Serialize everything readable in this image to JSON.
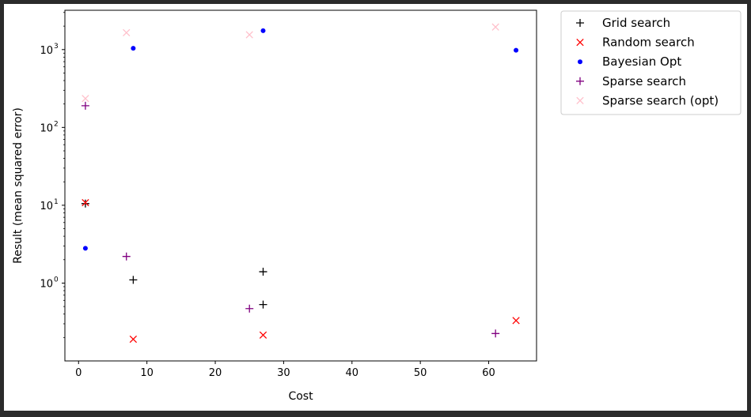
{
  "chart_data": {
    "type": "scatter",
    "xlabel": "Cost",
    "ylabel": "Result (mean squared error)",
    "xlim": [
      -2,
      67
    ],
    "ylim": [
      0.1,
      3200
    ],
    "yscale": "log",
    "x_ticks": [
      {
        "value": 0,
        "label": "0"
      },
      {
        "value": 10,
        "label": "10"
      },
      {
        "value": 20,
        "label": "20"
      },
      {
        "value": 30,
        "label": "30"
      },
      {
        "value": 40,
        "label": "40"
      },
      {
        "value": 50,
        "label": "50"
      },
      {
        "value": 60,
        "label": "60"
      }
    ],
    "y_ticks": [
      {
        "value": 1,
        "base": "10",
        "exp": "0"
      },
      {
        "value": 10,
        "base": "10",
        "exp": "1"
      },
      {
        "value": 100,
        "base": "10",
        "exp": "2"
      },
      {
        "value": 1000,
        "base": "10",
        "exp": "3"
      }
    ],
    "grid": false,
    "legend_position": "outside-upper-right",
    "series": [
      {
        "name": "Grid search",
        "marker": "plus",
        "color": "#000000",
        "points": [
          {
            "x": 1,
            "y": 10.5
          },
          {
            "x": 8,
            "y": 1.1
          },
          {
            "x": 27,
            "y": 1.4
          },
          {
            "x": 27,
            "y": 0.53
          }
        ]
      },
      {
        "name": "Random search",
        "marker": "x",
        "color": "#ff0000",
        "points": [
          {
            "x": 1,
            "y": 10.8
          },
          {
            "x": 8,
            "y": 0.19
          },
          {
            "x": 27,
            "y": 0.215
          },
          {
            "x": 64,
            "y": 0.33
          }
        ]
      },
      {
        "name": "Bayesian Opt",
        "marker": "dot",
        "color": "#0000ff",
        "points": [
          {
            "x": 1,
            "y": 2.8
          },
          {
            "x": 8,
            "y": 1040
          },
          {
            "x": 27,
            "y": 1750
          },
          {
            "x": 64,
            "y": 980
          }
        ]
      },
      {
        "name": "Sparse search",
        "marker": "plus",
        "color": "#800080",
        "points": [
          {
            "x": 1,
            "y": 190
          },
          {
            "x": 7,
            "y": 2.2
          },
          {
            "x": 25,
            "y": 0.47
          },
          {
            "x": 61,
            "y": 0.225
          }
        ]
      },
      {
        "name": "Sparse search (opt)",
        "marker": "x",
        "color": "#ffc0cb",
        "points": [
          {
            "x": 1,
            "y": 235
          },
          {
            "x": 7,
            "y": 1650
          },
          {
            "x": 25,
            "y": 1550
          },
          {
            "x": 61,
            "y": 1950
          }
        ]
      }
    ]
  }
}
